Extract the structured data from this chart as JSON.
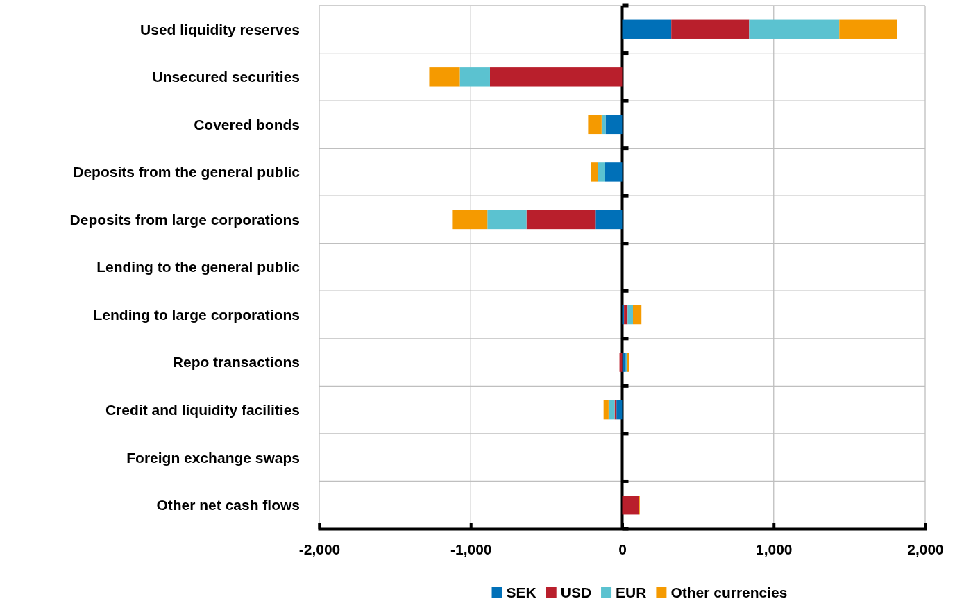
{
  "chart_data": {
    "type": "bar",
    "orientation": "horizontal",
    "stacked": true,
    "categories": [
      "Used liquidity reserves",
      "Unsecured securities",
      "Covered bonds",
      "Deposits from the general public",
      "Deposits from large corporations",
      "Lending to the general public",
      "Lending to large corporations",
      "Repo transactions",
      "Credit and liquidity facilities",
      "Foreign exchange swaps",
      "Other net cash flows"
    ],
    "series": [
      {
        "name": "SEK",
        "color": "#0070b8",
        "values": [
          324,
          0,
          -110,
          -116,
          -175,
          0,
          12,
          24,
          -38,
          0,
          0
        ]
      },
      {
        "name": "USD",
        "color": "#b91f2c",
        "values": [
          514,
          -873,
          0,
          0,
          -457,
          0,
          24,
          -18,
          -12,
          0,
          108
        ]
      },
      {
        "name": "EUR",
        "color": "#5bc2d0",
        "values": [
          595,
          -199,
          -26,
          -45,
          -258,
          0,
          35,
          9,
          -40,
          0,
          0
        ]
      },
      {
        "name": "Other currencies",
        "color": "#f59a00",
        "values": [
          380,
          -202,
          -89,
          -45,
          -233,
          0,
          56,
          11,
          -33,
          0,
          8
        ]
      }
    ],
    "xlim": [
      -2000,
      2000
    ],
    "xticks": [
      {
        "value": -2000,
        "label": "-2,000"
      },
      {
        "value": -1000,
        "label": "-1,000"
      },
      0,
      {
        "value": 1000,
        "label": "1,000"
      },
      {
        "value": 2000,
        "label": "2,000"
      }
    ],
    "grid": true,
    "legend": "bottom"
  }
}
